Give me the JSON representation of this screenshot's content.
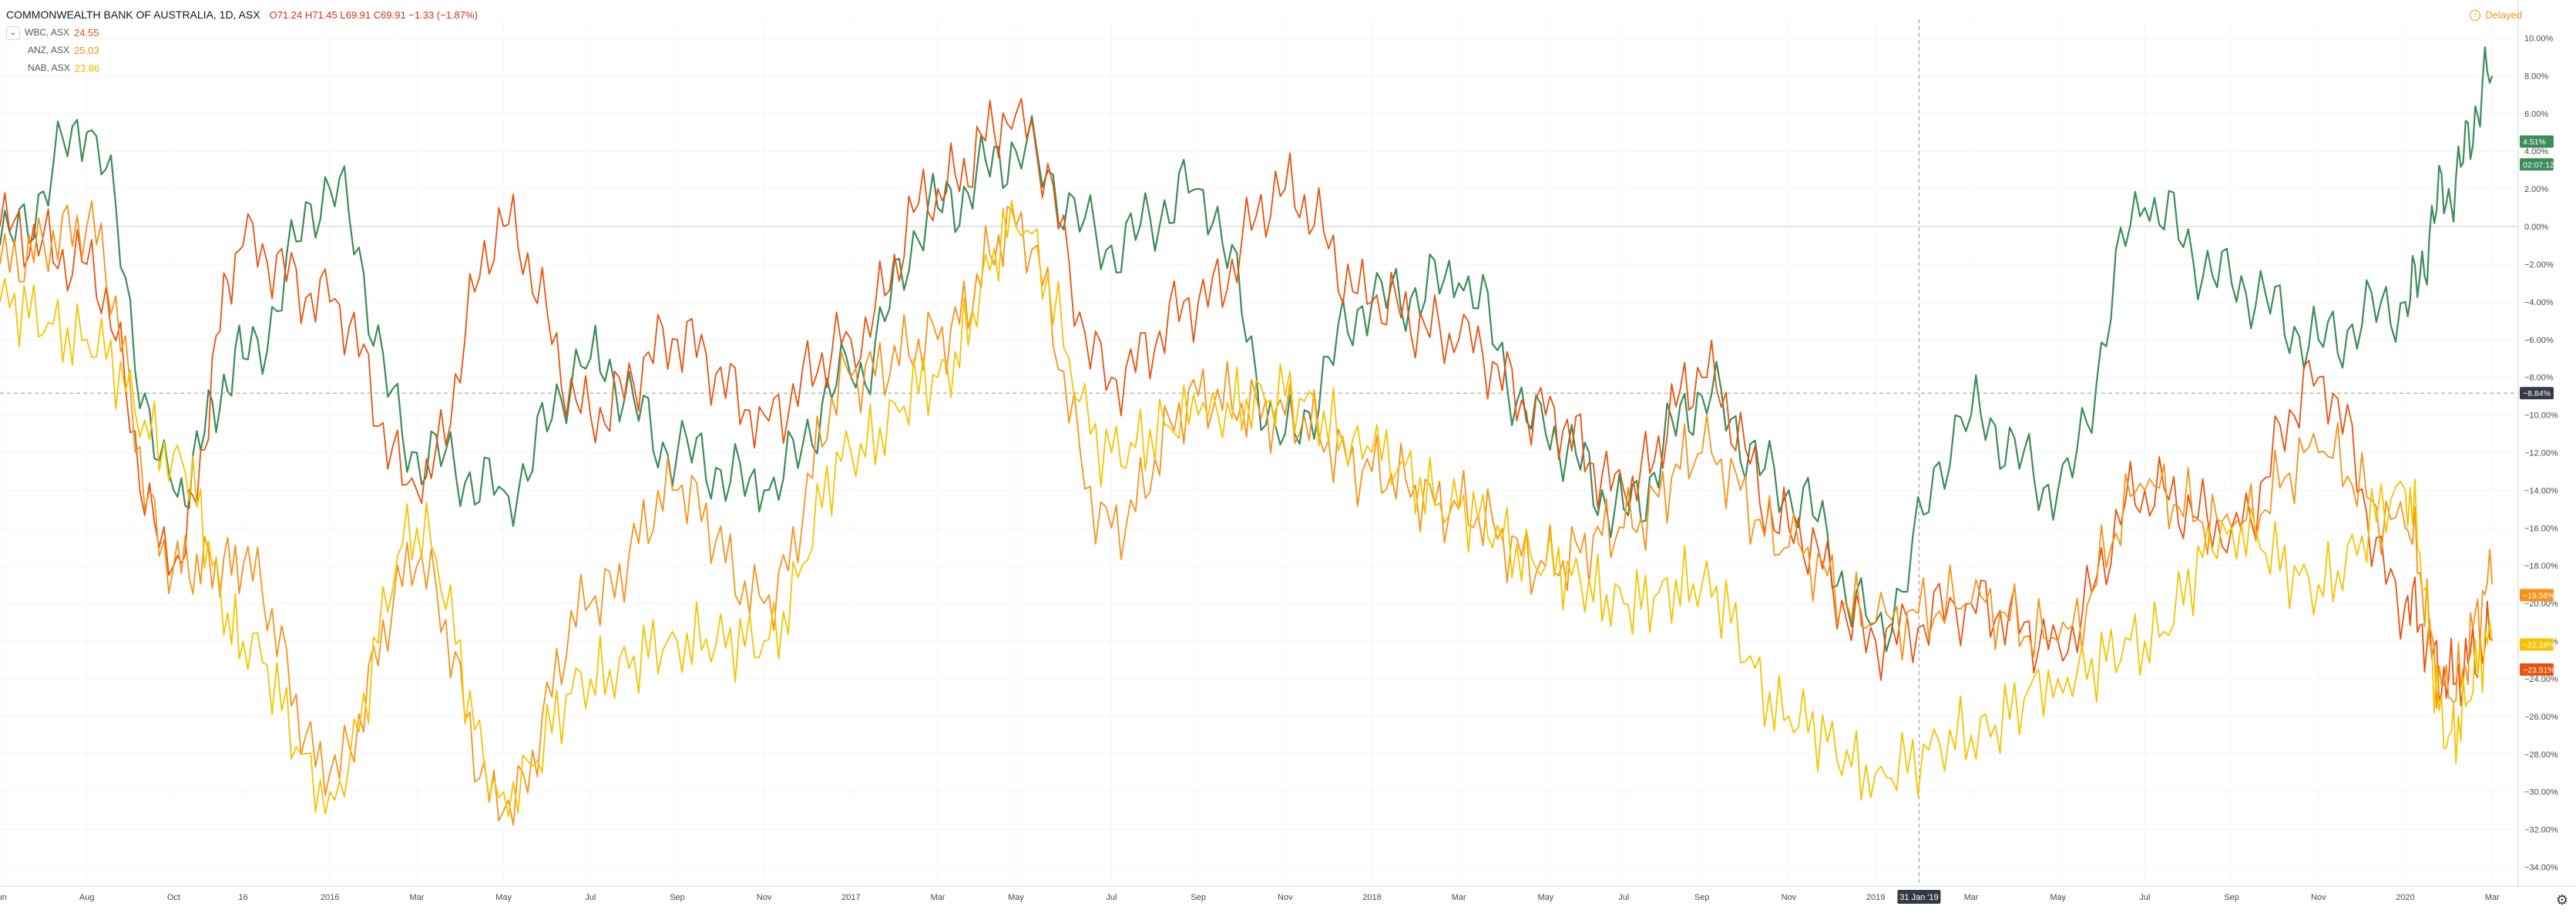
{
  "legend": {
    "main_symbol": "COMMONWEALTH BANK OF AUSTRALIA, 1D, ASX",
    "main_ohlc": "O71.24 H71.45 L69.91 C69.91 −1.33 (−1.87%)",
    "compare": [
      {
        "name": "WBC, ASX",
        "value": "24.55",
        "color": "#e8530e"
      },
      {
        "name": "ANZ, ASX",
        "value": "25.03",
        "color": "#f7931a"
      },
      {
        "name": "NAB, ASX",
        "value": "23.86",
        "color": "#f5c400"
      }
    ]
  },
  "delayed_label": "Delayed",
  "crosshair": {
    "date_label": "31 Jan '19",
    "price_label": "−8.84%"
  },
  "price_tags": [
    {
      "text": "4.51%",
      "value": 4.51,
      "color": "#3d8c5b"
    },
    {
      "text": "02:07:12",
      "value": 3.3,
      "color": "#3d8c5b"
    },
    {
      "text": "−19.56%",
      "value": -19.56,
      "color": "#f7931a"
    },
    {
      "text": "−22.18%",
      "value": -22.18,
      "color": "#f5c400"
    },
    {
      "text": "−23.51%",
      "value": -23.51,
      "color": "#e8530e"
    }
  ],
  "chart_data": {
    "type": "line",
    "title": "COMMONWEALTH BANK OF AUSTRALIA, 1D, ASX",
    "y_unit": "%",
    "ylim": [
      -35,
      11
    ],
    "y_ticks": [
      10,
      8,
      6,
      4,
      2,
      0,
      -2,
      -4,
      -6,
      -8,
      -10,
      -12,
      -14,
      -16,
      -18,
      -20,
      -22,
      -24,
      -26,
      -28,
      -30,
      -32,
      -34
    ],
    "x_ticks": [
      "Jun",
      "Aug",
      "Oct",
      "16",
      "2016",
      "Mar",
      "May",
      "Jul",
      "Sep",
      "Nov",
      "2017",
      "Mar",
      "May",
      "Jul",
      "Sep",
      "Nov",
      "2018",
      "Mar",
      "May",
      "Jul",
      "Sep",
      "Nov",
      "2019",
      "31 Jan '19",
      "Mar",
      "May",
      "Jul",
      "Sep",
      "Nov",
      "2020",
      "Mar"
    ],
    "x_tick_pos": [
      0.0,
      0.05,
      0.1,
      0.14,
      0.19,
      0.24,
      0.29,
      0.34,
      0.39,
      0.44,
      0.49,
      0.54,
      0.585,
      0.64,
      0.69,
      0.74,
      0.79,
      0.84,
      0.89,
      0.935,
      0.98,
      1.03,
      1.08,
      1.105,
      1.135,
      1.185,
      1.235,
      1.285,
      1.335,
      1.385,
      1.435
    ],
    "x": [
      0.0,
      0.05,
      0.1,
      0.14,
      0.19,
      0.24,
      0.29,
      0.34,
      0.39,
      0.44,
      0.49,
      0.54,
      0.585,
      0.64,
      0.69,
      0.74,
      0.79,
      0.84,
      0.89,
      0.935,
      0.98,
      1.03,
      1.08,
      1.135,
      1.185,
      1.235,
      1.285,
      1.335,
      1.385,
      1.41,
      1.435
    ],
    "series": [
      {
        "name": "CBA, ASX",
        "color": "#3d8c5b",
        "values": [
          -1,
          5,
          -14,
          -7,
          2,
          -12,
          -14,
          -7,
          -12,
          -14,
          -8,
          1,
          4,
          -1,
          2,
          -11,
          -4,
          -3,
          -11,
          -15,
          -9,
          -14,
          -21,
          -10,
          -14,
          1,
          -3,
          -6,
          -4,
          2,
          8
        ]
      },
      {
        "name": "WBC, ASX",
        "color": "#e8530e",
        "values": [
          0,
          -2,
          -18,
          -1,
          -4,
          -14,
          0,
          -10,
          -6,
          -10,
          -6,
          2,
          6,
          -8,
          -4,
          2,
          -4,
          -6,
          -10,
          -14,
          -8,
          -16,
          -22,
          -20,
          -22,
          -14,
          -16,
          -8,
          -20,
          -24,
          -22
        ]
      },
      {
        "name": "ANZ, ASX",
        "color": "#f7931a",
        "values": [
          -2,
          0,
          -18,
          -18,
          -29,
          -18,
          -31,
          -20,
          -14,
          -20,
          -8,
          -6,
          0,
          -16,
          -9,
          -10,
          -13,
          -15,
          -18,
          -16,
          -12,
          -17,
          -21,
          -20,
          -22,
          -14,
          -16,
          -12,
          -16,
          -25,
          -19
        ]
      },
      {
        "name": "NAB, ASX",
        "color": "#f5c400",
        "values": [
          -4,
          -6,
          -12,
          -22,
          -30,
          -16,
          -30,
          -24,
          -22,
          -22,
          -12,
          -8,
          0,
          -12,
          -10,
          -9,
          -12,
          -15,
          -18,
          -20,
          -19,
          -26,
          -29,
          -27,
          -24,
          -22,
          -16,
          -19,
          -14,
          -27,
          -22
        ]
      }
    ]
  }
}
